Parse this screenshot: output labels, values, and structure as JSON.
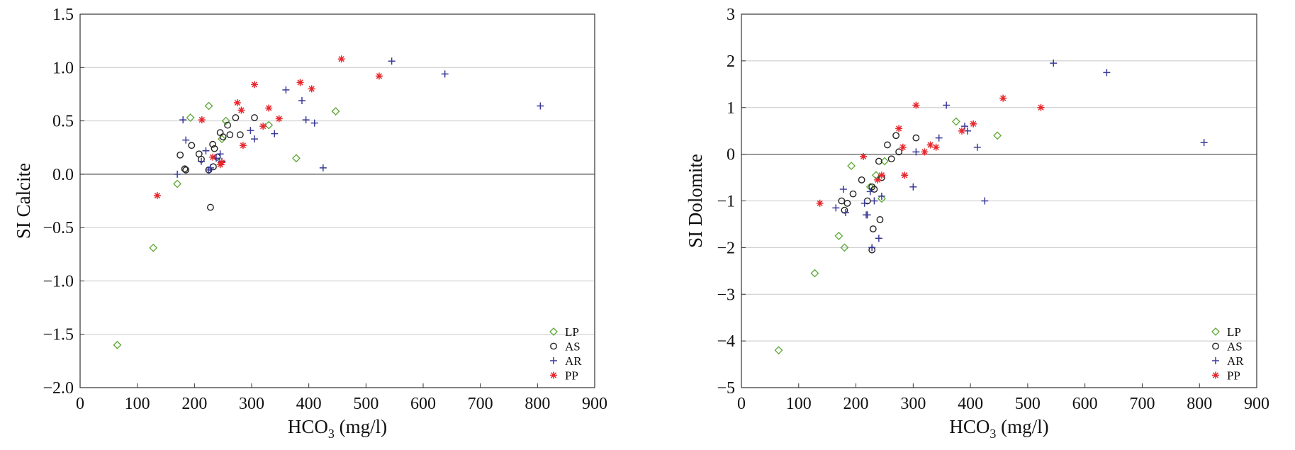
{
  "chart_data": [
    {
      "type": "scatter",
      "xlabel": "HCO",
      "xlabel_sub": "3",
      "xlabel_unit": "(mg/l)",
      "ylabel": "SI Calcite",
      "xlim": [
        0,
        900
      ],
      "ylim": [
        -2.0,
        1.5
      ],
      "xticks": [
        0,
        100,
        200,
        300,
        400,
        500,
        600,
        700,
        800,
        900
      ],
      "yticks": [
        -2.0,
        -1.5,
        -1.0,
        -0.5,
        0.0,
        0.5,
        1.0,
        1.5
      ],
      "ytick_labels": [
        "−2.0",
        "−1.5",
        "−1.0",
        "−0.5",
        "0.0",
        "0.5",
        "1.0",
        "1.5"
      ],
      "grid": true,
      "legend_position": "bottom-right",
      "series": [
        {
          "name": "LP",
          "marker": "diamond",
          "color": "#5aa832",
          "x": [
            65,
            128,
            170,
            193,
            225,
            248,
            255,
            330,
            378,
            447
          ],
          "y": [
            -1.6,
            -0.69,
            -0.09,
            0.53,
            0.64,
            0.33,
            0.5,
            0.46,
            0.15,
            0.59
          ]
        },
        {
          "name": "AS",
          "marker": "circle",
          "color": "#222222",
          "x": [
            175,
            183,
            195,
            208,
            212,
            225,
            232,
            235,
            245,
            250,
            258,
            262,
            272,
            280,
            305,
            228,
            233,
            240,
            185
          ],
          "y": [
            0.18,
            0.05,
            0.27,
            0.19,
            0.14,
            0.04,
            0.28,
            0.24,
            0.39,
            0.35,
            0.46,
            0.37,
            0.53,
            0.37,
            0.53,
            -0.31,
            0.07,
            0.16,
            0.04
          ]
        },
        {
          "name": "AR",
          "marker": "plus",
          "color": "#3a3a9a",
          "x": [
            170,
            180,
            185,
            212,
            220,
            225,
            228,
            238,
            245,
            248,
            298,
            305,
            340,
            360,
            388,
            395,
            410,
            425,
            545,
            638,
            805
          ],
          "y": [
            0.0,
            0.51,
            0.32,
            0.12,
            0.22,
            0.04,
            0.06,
            0.15,
            0.19,
            0.12,
            0.41,
            0.33,
            0.38,
            0.79,
            0.69,
            0.51,
            0.48,
            0.06,
            1.06,
            0.94,
            0.64
          ]
        },
        {
          "name": "PP",
          "marker": "asterisk",
          "color": "#e8262b",
          "x": [
            135,
            213,
            232,
            245,
            248,
            275,
            282,
            285,
            305,
            320,
            330,
            348,
            385,
            405,
            457,
            523
          ],
          "y": [
            -0.2,
            0.51,
            0.16,
            0.09,
            0.11,
            0.67,
            0.6,
            0.27,
            0.84,
            0.45,
            0.62,
            0.52,
            0.86,
            0.8,
            1.08,
            0.92
          ]
        }
      ]
    },
    {
      "type": "scatter",
      "xlabel": "HCO",
      "xlabel_sub": "3",
      "xlabel_unit": "(mg/l)",
      "ylabel": "SI Dolomite",
      "xlim": [
        0,
        900
      ],
      "ylim": [
        -5,
        3
      ],
      "xticks": [
        0,
        100,
        200,
        300,
        400,
        500,
        600,
        700,
        800,
        900
      ],
      "yticks": [
        -5,
        -4,
        -3,
        -2,
        -1,
        0,
        1,
        2,
        3
      ],
      "ytick_labels": [
        "−5",
        "−4",
        "−3",
        "−2",
        "−1",
        "0",
        "1",
        "2",
        "3"
      ],
      "grid": true,
      "legend_position": "bottom-right",
      "series": [
        {
          "name": "LP",
          "marker": "diamond",
          "color": "#5aa832",
          "x": [
            65,
            128,
            170,
            180,
            192,
            225,
            235,
            245,
            250,
            375,
            447
          ],
          "y": [
            -4.2,
            -2.55,
            -1.75,
            -2.0,
            -0.25,
            -0.7,
            -0.45,
            -0.95,
            -0.15,
            0.7,
            0.4
          ]
        },
        {
          "name": "AS",
          "marker": "circle",
          "color": "#222222",
          "x": [
            175,
            180,
            185,
            195,
            210,
            220,
            228,
            230,
            232,
            240,
            242,
            245,
            255,
            262,
            270,
            275,
            305,
            228
          ],
          "y": [
            -1.0,
            -1.2,
            -1.05,
            -0.85,
            -0.55,
            -1.0,
            -0.7,
            -1.6,
            -0.75,
            -0.15,
            -1.4,
            -0.5,
            0.2,
            -0.1,
            0.4,
            0.05,
            0.35,
            -2.05
          ]
        },
        {
          "name": "AR",
          "marker": "plus",
          "color": "#3a3a9a",
          "x": [
            165,
            178,
            182,
            215,
            220,
            225,
            232,
            240,
            245,
            300,
            305,
            345,
            358,
            390,
            395,
            412,
            425,
            545,
            638,
            808,
            228,
            218
          ],
          "y": [
            -1.15,
            -0.75,
            -1.25,
            -1.05,
            -1.3,
            -0.8,
            -1.0,
            -1.8,
            -0.9,
            -0.7,
            0.05,
            0.35,
            1.05,
            0.6,
            0.5,
            0.15,
            -1.0,
            1.95,
            1.75,
            0.25,
            -2.0,
            -1.3
          ]
        },
        {
          "name": "PP",
          "marker": "asterisk",
          "color": "#e8262b",
          "x": [
            137,
            213,
            238,
            245,
            275,
            282,
            285,
            305,
            320,
            330,
            340,
            385,
            405,
            457,
            523
          ],
          "y": [
            -1.05,
            -0.05,
            -0.55,
            -0.45,
            0.55,
            0.15,
            -0.45,
            1.05,
            0.05,
            0.2,
            0.15,
            0.5,
            0.65,
            1.2,
            1.0
          ]
        }
      ]
    }
  ]
}
